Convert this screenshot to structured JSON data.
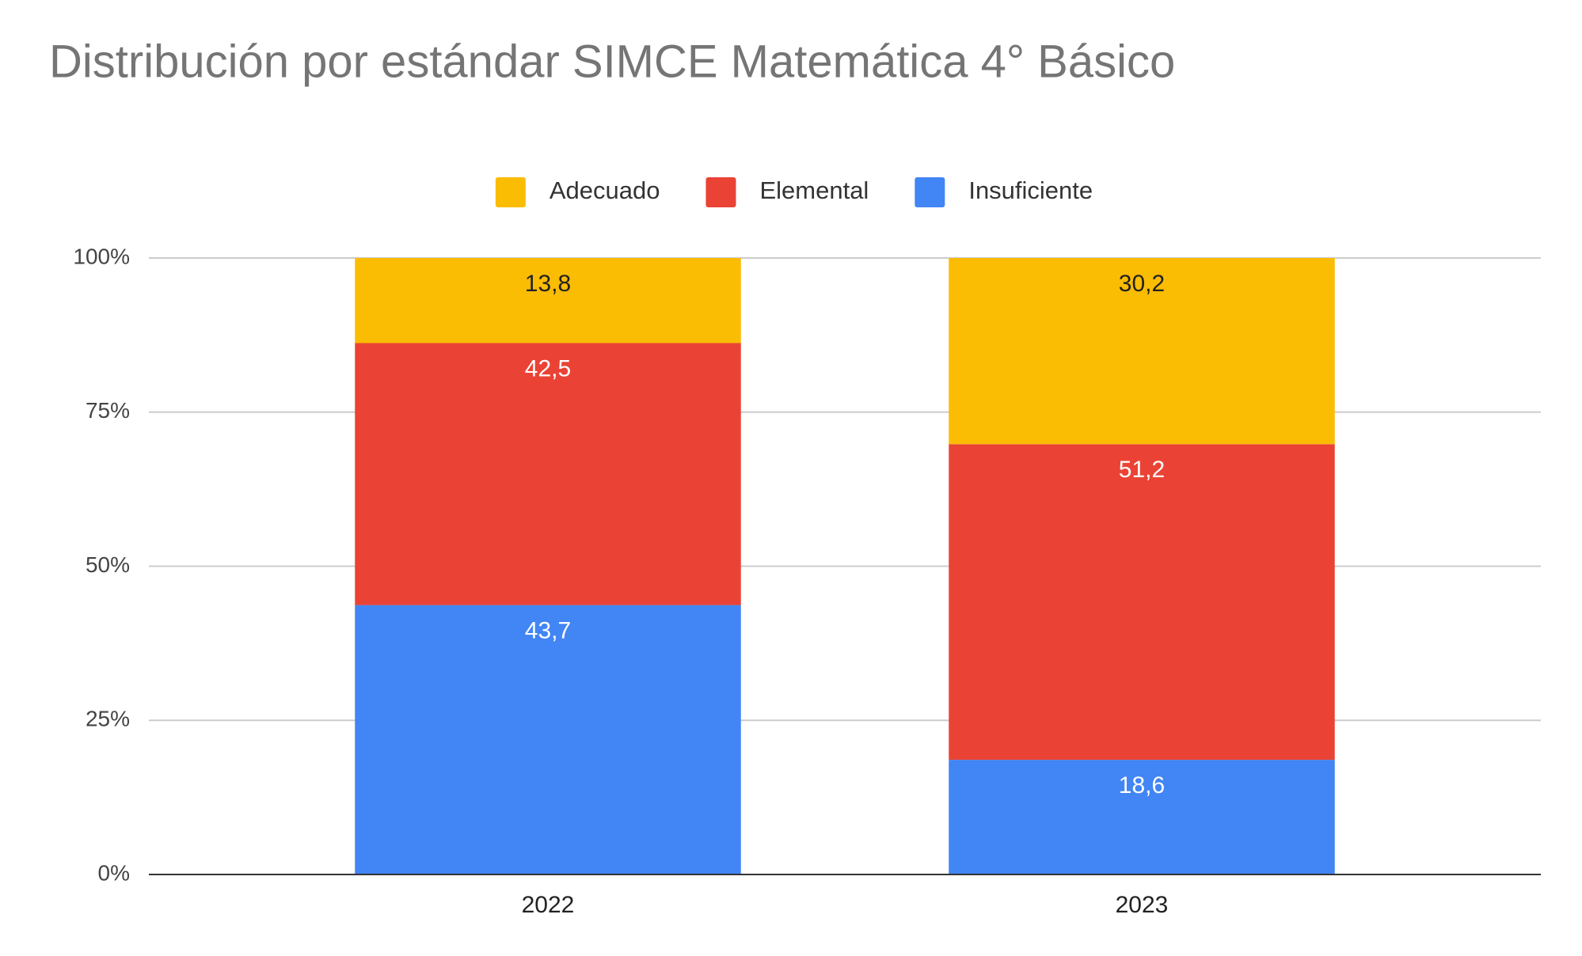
{
  "chart_data": {
    "type": "stacked_bar",
    "title": "Distribución por estándar SIMCE Matemática 4° Básico",
    "categories": [
      "2022",
      "2023"
    ],
    "series": [
      {
        "name": "Adecuado",
        "color": "#fbbc04",
        "label_color": "#222222",
        "values": [
          13.8,
          30.2
        ],
        "value_labels": [
          "13,8",
          "30,2"
        ]
      },
      {
        "name": "Elemental",
        "color": "#ea4335",
        "label_color": "#ffffff",
        "values": [
          42.5,
          51.2
        ],
        "value_labels": [
          "42,5",
          "51,2"
        ]
      },
      {
        "name": "Insuficiente",
        "color": "#4285f4",
        "label_color": "#ffffff",
        "values": [
          43.7,
          18.6
        ],
        "value_labels": [
          "43,7",
          "18,6"
        ]
      }
    ],
    "ylim": [
      0,
      100
    ],
    "yticks": [
      {
        "value": 0,
        "label": "0%"
      },
      {
        "value": 25,
        "label": "25%"
      },
      {
        "value": 50,
        "label": "50%"
      },
      {
        "value": 75,
        "label": "75%"
      },
      {
        "value": 100,
        "label": "100%"
      }
    ],
    "grid": true,
    "legend": "top"
  }
}
